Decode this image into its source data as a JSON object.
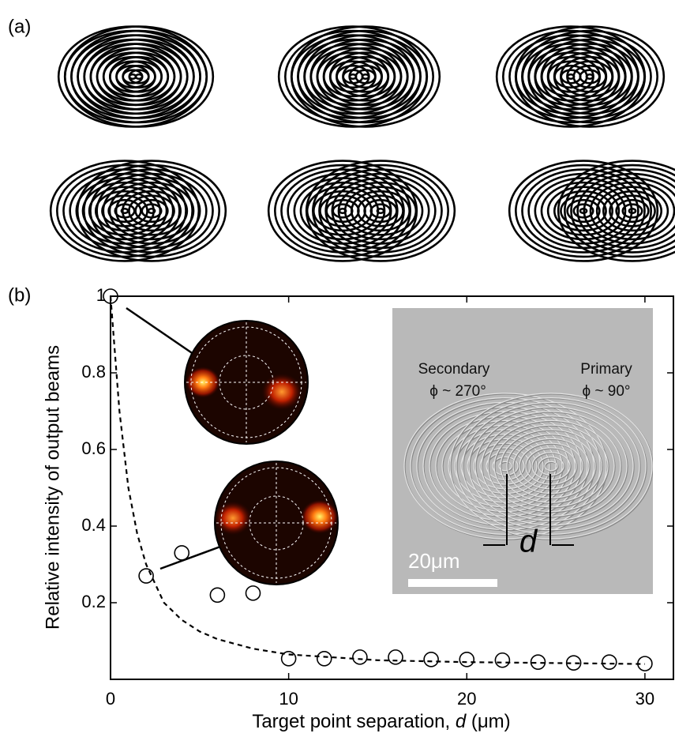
{
  "panel_a": {
    "label": "(a)"
  },
  "chart_data": {
    "type": "scatter",
    "panel_label": "(b)",
    "xlabel": [
      "Target point separation, ",
      "d",
      " (μm)"
    ],
    "ylabel": "Relative intensity of output beams",
    "x": [
      0,
      2,
      4,
      6,
      8,
      10,
      12,
      14,
      16,
      18,
      20,
      22,
      24,
      26,
      28,
      30
    ],
    "values": [
      1.0,
      0.27,
      0.33,
      0.22,
      0.225,
      0.054,
      0.054,
      0.058,
      0.058,
      0.052,
      0.052,
      0.05,
      0.045,
      0.043,
      0.045,
      0.041
    ],
    "fit": {
      "x": [
        0,
        0.5,
        1,
        1.5,
        2,
        3,
        4,
        5,
        6,
        8,
        10,
        15,
        20,
        30
      ],
      "values": [
        1.0,
        0.7,
        0.5,
        0.38,
        0.3,
        0.2,
        0.155,
        0.125,
        0.105,
        0.08,
        0.065,
        0.05,
        0.045,
        0.04
      ]
    },
    "xlim": [
      0,
      31.6
    ],
    "ylim": [
      0,
      1
    ],
    "xticks": [
      0,
      10,
      20,
      30
    ],
    "yticks": [
      0.2,
      0.4,
      0.6,
      0.8,
      1
    ],
    "inset": {
      "left_title": "Secondary",
      "left_phase": "ϕ ~ 270°",
      "right_title": "Primary",
      "right_phase": "ϕ ~ 90°",
      "gap_label": "d",
      "scale_label": "20μm"
    }
  }
}
